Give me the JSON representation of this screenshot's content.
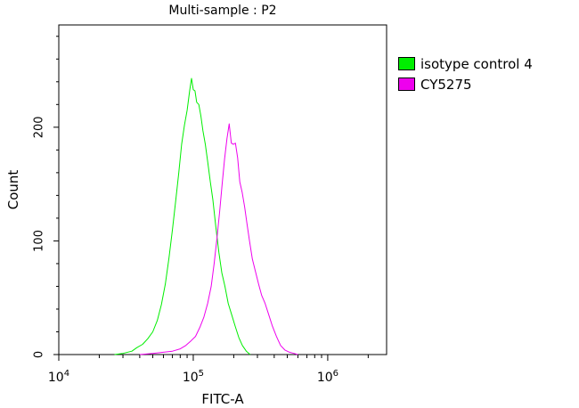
{
  "chart_data": {
    "type": "line",
    "title": "Multi-sample : P2",
    "xlabel": "FITC-A",
    "ylabel": "Count",
    "x_scale": "log",
    "xlim": [
      10000,
      2740000
    ],
    "ylim": [
      0,
      290
    ],
    "x_ticks": [
      {
        "value": 10000,
        "base": "10",
        "exp": "4"
      },
      {
        "value": 100000,
        "base": "10",
        "exp": "5"
      },
      {
        "value": 1000000,
        "base": "10",
        "exp": "6"
      }
    ],
    "y_ticks": [
      0,
      100,
      200
    ],
    "grid": false,
    "legend_position": "outside-right",
    "series": [
      {
        "name": "isotype control 4",
        "color": "#00ee00",
        "x": [
          26000,
          30000,
          35000,
          38000,
          42000,
          46000,
          50000,
          54000,
          58000,
          62000,
          66000,
          70000,
          74000,
          78000,
          82000,
          86000,
          90000,
          94000,
          97000,
          100000,
          103000,
          106000,
          110000,
          114000,
          118000,
          123000,
          128000,
          134000,
          140000,
          147000,
          155000,
          163000,
          172000,
          182000,
          193000,
          205000,
          218000,
          232000,
          248000,
          265000
        ],
        "y": [
          0,
          1,
          3,
          6,
          9,
          14,
          20,
          30,
          44,
          62,
          85,
          110,
          135,
          160,
          185,
          202,
          215,
          232,
          243,
          233,
          232,
          222,
          220,
          210,
          197,
          185,
          170,
          152,
          136,
          113,
          90,
          72,
          60,
          45,
          35,
          25,
          15,
          8,
          3,
          0
        ]
      },
      {
        "name": "CY5275",
        "color": "#ee00ee",
        "x": [
          40000,
          50000,
          60000,
          70000,
          80000,
          88000,
          96000,
          104000,
          112000,
          120000,
          128000,
          136000,
          143000,
          150000,
          157000,
          164000,
          171000,
          178000,
          185000,
          192000,
          199000,
          206000,
          214000,
          222000,
          231000,
          241000,
          251000,
          262000,
          275000,
          290000,
          306000,
          323000,
          342000,
          364000,
          388000,
          415000,
          446000,
          480000,
          520000,
          560000,
          600000
        ],
        "y": [
          0,
          1,
          2,
          3,
          5,
          8,
          12,
          16,
          24,
          33,
          45,
          60,
          80,
          102,
          125,
          150,
          172,
          190,
          203,
          186,
          185,
          186,
          173,
          152,
          143,
          130,
          115,
          100,
          84,
          73,
          62,
          52,
          45,
          35,
          25,
          16,
          8,
          4,
          2,
          1,
          0
        ]
      }
    ]
  }
}
